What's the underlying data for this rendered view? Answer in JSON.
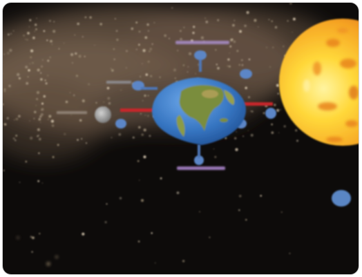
{
  "scene": {
    "labels": {
      "top": "",
      "left_upper": "",
      "left_moon": "",
      "bottom": ""
    },
    "colors": {
      "space": "#0d0b0a",
      "milky_way": "#b89a7a",
      "earth_ocean": "#2f6fb6",
      "earth_land": "#7c8b3a",
      "sun_core": "#ffd23a",
      "sun_spots": "#e8841f",
      "connector": "#d12a2a",
      "satellite": "#5c86c7",
      "moon": "#9b9b9b"
    },
    "icons": [
      "earth",
      "sun",
      "moon",
      "satellite"
    ]
  }
}
